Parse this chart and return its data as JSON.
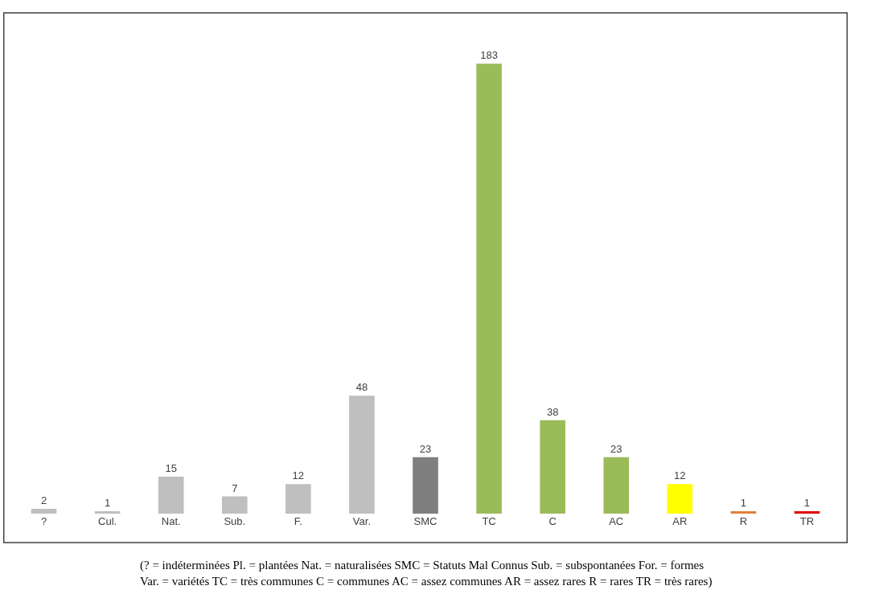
{
  "chart_data": {
    "type": "bar",
    "categories": [
      "?",
      "Cul.",
      "Nat.",
      "Sub.",
      "F.",
      "Var.",
      "SMC",
      "TC",
      "C",
      "AC",
      "AR",
      "R",
      "TR"
    ],
    "values": [
      2,
      1,
      15,
      7,
      12,
      48,
      23,
      183,
      38,
      23,
      12,
      1,
      1
    ],
    "colors": [
      "#bfbfbf",
      "#bfbfbf",
      "#bfbfbf",
      "#bfbfbf",
      "#bfbfbf",
      "#bfbfbf",
      "#7f7f7f",
      "#9bbb59",
      "#9bbb59",
      "#9bbb59",
      "#ffff00",
      "#e0803a",
      "#e00000"
    ],
    "data_labels": true,
    "annotations": [
      "(? = indéterminées Pl. = plantées Nat. = naturalisées SMC = Statuts Mal Connus Sub. = subspontanées For. = formes\nVar. = variétés TC = très communes C = communes AC = assez communes AR = assez rares R = rares TR = très rares)"
    ]
  }
}
